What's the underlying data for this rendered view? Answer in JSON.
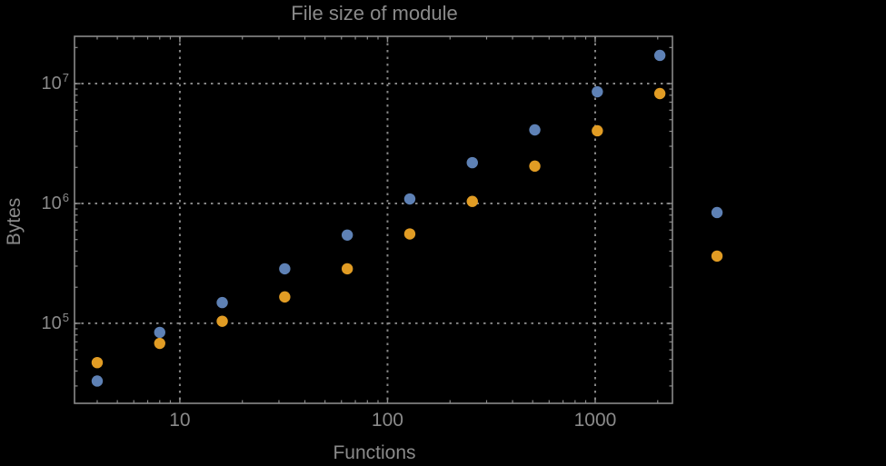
{
  "chart_data": {
    "type": "scatter",
    "title": "File size of module",
    "xlabel": "Functions",
    "ylabel": "Bytes",
    "x_scale": "log",
    "y_scale": "log",
    "xlim": [
      3.11,
      2355
    ],
    "ylim": [
      21500,
      24800000
    ],
    "grid": "dotted",
    "legend_position": "right-outside-no-text",
    "marker_radius": 6.2,
    "colors": {
      "background": "#000000",
      "frame": "#8a8a8a",
      "grid": "#858585",
      "text": "#8a8a8a",
      "series_blue": "#5e81b5",
      "series_orange": "#e19c24"
    },
    "x_ticks": [
      {
        "label": "10",
        "value": 10
      },
      {
        "label": "100",
        "value": 100
      },
      {
        "label": "1000",
        "value": 1000
      }
    ],
    "x_minor_ticks": [
      4,
      5,
      6,
      7,
      8,
      9,
      20,
      30,
      40,
      50,
      60,
      70,
      80,
      90,
      200,
      300,
      400,
      500,
      600,
      700,
      800,
      900,
      2000
    ],
    "y_ticks": [
      {
        "base": "10",
        "exp": "5",
        "value": 100000
      },
      {
        "base": "10",
        "exp": "6",
        "value": 1000000
      },
      {
        "base": "10",
        "exp": "7",
        "value": 10000000
      }
    ],
    "y_minor_ticks": [
      30000,
      40000,
      50000,
      60000,
      70000,
      80000,
      90000,
      200000,
      300000,
      400000,
      500000,
      600000,
      700000,
      800000,
      900000,
      2000000,
      3000000,
      4000000,
      5000000,
      6000000,
      7000000,
      8000000,
      9000000,
      20000000
    ],
    "series": [
      {
        "id": "blue",
        "color": "#5e81b5",
        "points": [
          [
            4,
            33000
          ],
          [
            8,
            84000
          ],
          [
            16,
            149000
          ],
          [
            32,
            285000
          ],
          [
            64,
            545000
          ],
          [
            128,
            1090000
          ],
          [
            256,
            2190000
          ],
          [
            512,
            4110000
          ],
          [
            1024,
            8550000
          ],
          [
            2048,
            17200000
          ]
        ]
      },
      {
        "id": "orange",
        "color": "#e19c24",
        "points": [
          [
            4,
            47000
          ],
          [
            8,
            68000
          ],
          [
            16,
            104000
          ],
          [
            32,
            166000
          ],
          [
            64,
            285000
          ],
          [
            128,
            557000
          ],
          [
            256,
            1040000
          ],
          [
            512,
            2050000
          ],
          [
            1024,
            4040000
          ],
          [
            2048,
            8260000
          ]
        ]
      }
    ],
    "legend_markers": [
      {
        "id": "blue",
        "color": "#5e81b5",
        "x": 3860,
        "y": 840000
      },
      {
        "id": "orange",
        "color": "#e19c24",
        "x": 3860,
        "y": 364000
      }
    ]
  }
}
